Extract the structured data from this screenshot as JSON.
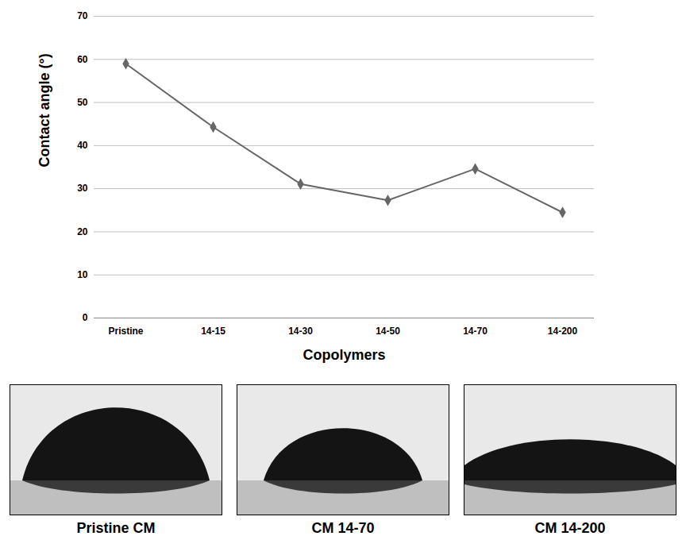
{
  "chart_data": {
    "type": "line",
    "x_label": "Copolymers",
    "y_label": "Contact angle (°)",
    "categories": [
      "Pristine",
      "14-15",
      "14-30",
      "14-50",
      "14-70",
      "14-200"
    ],
    "values": [
      59,
      44.3,
      31.1,
      27.3,
      34.6,
      24.5
    ],
    "color": "#666666",
    "marker": "diamond",
    "ylim": [
      0,
      70
    ],
    "yticks": [
      0,
      10,
      20,
      30,
      40,
      50,
      60,
      70
    ],
    "grid": true
  },
  "panels": [
    {
      "caption": "Pristine CM"
    },
    {
      "caption": "CM 14-70"
    },
    {
      "caption": "CM 14-200"
    }
  ]
}
